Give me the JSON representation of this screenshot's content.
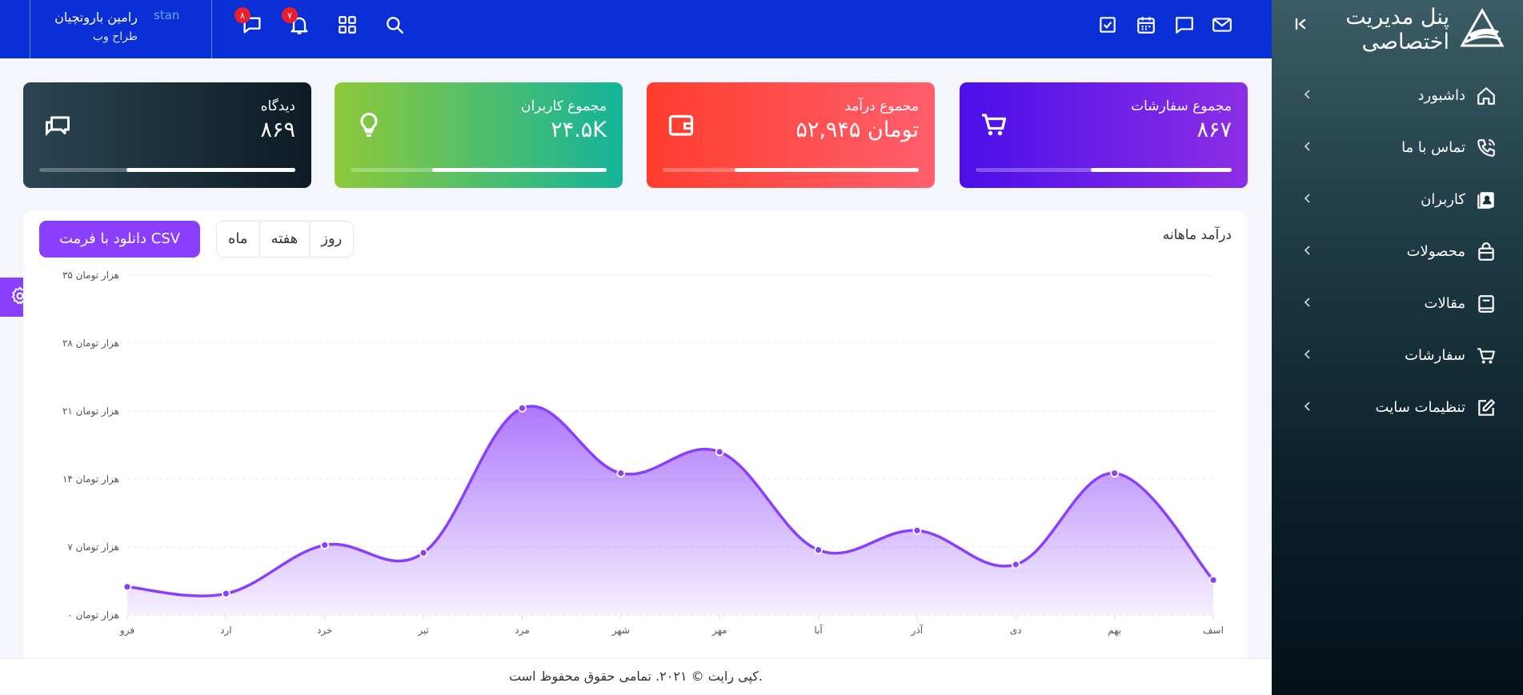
{
  "brand": {
    "title_line1": "پنل مدیریت",
    "title_line2": "اختصاصی",
    "logo_icon": "brand-logo-icon"
  },
  "colors": {
    "header": "#0a2fd6",
    "accent": "#8a3ffc",
    "badge": "#ea1f2d"
  },
  "sidebar": {
    "items": [
      {
        "label": "داشبورد",
        "icon": "home-icon"
      },
      {
        "label": "تماس با ما",
        "icon": "phone-icon"
      },
      {
        "label": "کاربران",
        "icon": "contacts-icon"
      },
      {
        "label": "محصولات",
        "icon": "shopping-bag-icon"
      },
      {
        "label": "مقالات",
        "icon": "book-icon"
      },
      {
        "label": "سفارشات",
        "icon": "cart-icon"
      },
      {
        "label": "تنظیمات سایت",
        "icon": "edit-icon"
      }
    ]
  },
  "header": {
    "user": {
      "name": "رامین باروتچیان",
      "role": "طراح وب",
      "avatar_alt": "stan"
    },
    "badges": {
      "notifications": "۷",
      "messages": "۸"
    }
  },
  "cards": [
    {
      "title": "مجموع سفارشات",
      "value": "۸۶۷",
      "progress": 0.55,
      "icon": "cart-icon"
    },
    {
      "title": "مجموع درآمد",
      "value": "۵۲,۹۴۵ تومان",
      "progress": 0.72,
      "icon": "wallet-icon"
    },
    {
      "title": "مجموع کاربران",
      "value": "۲۴.۵K",
      "progress": 0.68,
      "icon": "bulb-icon"
    },
    {
      "title": "دیدگاه",
      "value": "۸۶۹",
      "progress": 0.66,
      "icon": "comments-icon"
    }
  ],
  "panel": {
    "title": "درآمد ماهانه",
    "tabs": [
      "روز",
      "هفته",
      "ماه"
    ],
    "download_label": "دانلود با فرمت CSV"
  },
  "chart_data": {
    "type": "area",
    "title": "درآمد ماهانه",
    "categories": [
      "فرو",
      "ارد",
      "خرد",
      "تیر",
      "مرد",
      "شهر",
      "مهر",
      "آبا",
      "آذر",
      "دی",
      "بهم",
      "اسف"
    ],
    "values": [
      2.9,
      2.2,
      7.2,
      6.4,
      21.3,
      14.6,
      16.8,
      6.7,
      8.7,
      5.2,
      14.6,
      3.6
    ],
    "ytick_labels": [
      "۰ هزار تومان",
      "۷ هزار تومان",
      "۱۴ هزار تومان",
      "۲۱ هزار تومان",
      "۲۸ هزار تومان",
      "۳۵ هزار تومان"
    ],
    "ylim": [
      0,
      28
    ],
    "grid": true,
    "color": "#8a3ffc"
  },
  "footer": {
    "text": "کپی رایت © ۲۰۲۱. تمامی حقوق محفوظ است."
  }
}
